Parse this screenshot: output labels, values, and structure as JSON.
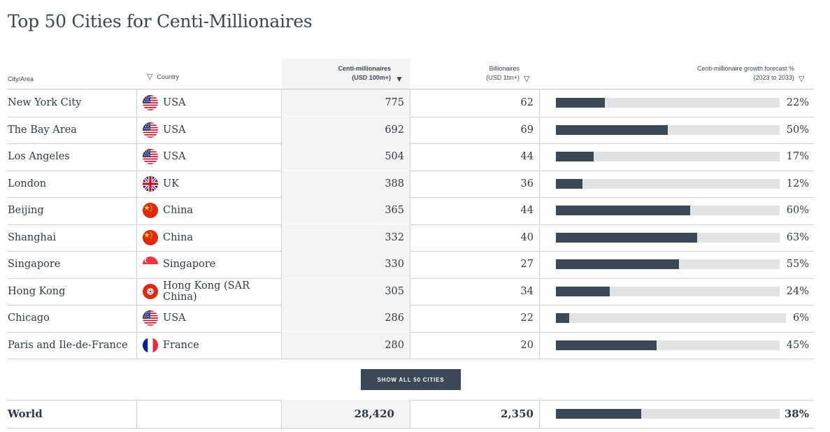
{
  "title": "Top 50 Cities for Centi-Millionaires",
  "headers": {
    "city": "City/Area",
    "country": "Country",
    "cm_line1": "Centi-millionaires",
    "cm_line2": "(USD 100m+)",
    "bn_line1": "Billionaires",
    "bn_line2": "(USD 1bn+)",
    "growth_line1": "Centi-millionaire growth forecast %",
    "growth_line2": "(2023 to 2033)"
  },
  "rows": [
    {
      "city": "New York City",
      "country": "USA",
      "flag": "usa-flag-icon",
      "centi": "775",
      "billionaires": "62",
      "growth": "22%"
    },
    {
      "city": "The Bay Area",
      "country": "USA",
      "flag": "usa-flag-icon",
      "centi": "692",
      "billionaires": "69",
      "growth": "50%"
    },
    {
      "city": "Los Angeles",
      "country": "USA",
      "flag": "usa-flag-icon",
      "centi": "504",
      "billionaires": "44",
      "growth": "17%"
    },
    {
      "city": "London",
      "country": "UK",
      "flag": "uk-flag-icon",
      "centi": "388",
      "billionaires": "36",
      "growth": "12%"
    },
    {
      "city": "Beijing",
      "country": "China",
      "flag": "china-flag-icon",
      "centi": "365",
      "billionaires": "44",
      "growth": "60%"
    },
    {
      "city": "Shanghai",
      "country": "China",
      "flag": "china-flag-icon",
      "centi": "332",
      "billionaires": "40",
      "growth": "63%"
    },
    {
      "city": "Singapore",
      "country": "Singapore",
      "flag": "singapore-flag-icon",
      "centi": "330",
      "billionaires": "27",
      "growth": "55%"
    },
    {
      "city": "Hong Kong",
      "country": "Hong Kong (SAR China)",
      "flag": "hongkong-flag-icon",
      "centi": "305",
      "billionaires": "34",
      "growth": "24%"
    },
    {
      "city": "Chicago",
      "country": "USA",
      "flag": "usa-flag-icon",
      "centi": "286",
      "billionaires": "22",
      "growth": "6%"
    },
    {
      "city": "Paris and Ile-de-France",
      "country": "France",
      "flag": "france-flag-icon",
      "centi": "280",
      "billionaires": "20",
      "growth": "45%"
    }
  ],
  "show_all_label": "SHOW ALL 50 CITIES",
  "world": {
    "label": "World",
    "centi": "28,420",
    "billionaires": "2,350",
    "growth": "38%"
  },
  "colors": {
    "bar": "#3b4855",
    "track": "#e1e2e3",
    "highlight_column": "#f4f4f4"
  },
  "chart_data": {
    "type": "table",
    "title": "Top 50 Cities for Centi-Millionaires",
    "columns": [
      "City/Area",
      "Country",
      "Centi-millionaires (USD 100m+)",
      "Billionaires (USD 1bn+)",
      "Centi-millionaire growth forecast % (2023 to 2033)"
    ],
    "sorted_by": "Centi-millionaires (USD 100m+)",
    "sort_order": "descending",
    "categories": [
      "New York City",
      "The Bay Area",
      "Los Angeles",
      "London",
      "Beijing",
      "Shanghai",
      "Singapore",
      "Hong Kong",
      "Chicago",
      "Paris and Ile-de-France"
    ],
    "series": [
      {
        "name": "Centi-millionaires (USD 100m+)",
        "values": [
          775,
          692,
          504,
          388,
          365,
          332,
          330,
          305,
          286,
          280
        ]
      },
      {
        "name": "Billionaires (USD 1bn+)",
        "values": [
          62,
          69,
          44,
          36,
          44,
          40,
          27,
          34,
          22,
          20
        ]
      },
      {
        "name": "Centi-millionaire growth forecast % (2023 to 2033)",
        "values": [
          22,
          50,
          17,
          12,
          60,
          63,
          55,
          24,
          6,
          45
        ]
      }
    ],
    "totals": {
      "label": "World",
      "centi": 28420,
      "billionaires": 2350,
      "growth": 38
    }
  }
}
